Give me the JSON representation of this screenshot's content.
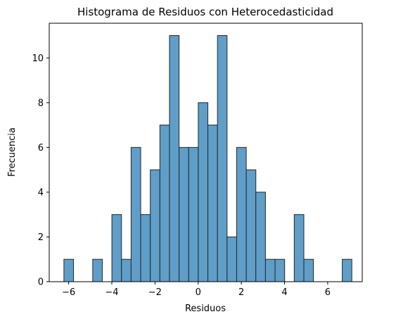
{
  "chart_data": {
    "type": "bar",
    "title": "Histograma de Residuos con Heterocedasticidad",
    "xlabel": "Residuos",
    "ylabel": "Frecuencia",
    "xlim": [
      -6.9,
      7.6
    ],
    "ylim": [
      0,
      11.55
    ],
    "xticks": [
      -6,
      -4,
      -2,
      0,
      2,
      4,
      6
    ],
    "yticks": [
      0,
      2,
      4,
      6,
      8,
      10
    ],
    "bin_start": -6.22,
    "bin_width": 0.4446,
    "counts": [
      1,
      0,
      0,
      1,
      0,
      3,
      1,
      6,
      3,
      5,
      7,
      11,
      6,
      6,
      8,
      7,
      11,
      2,
      6,
      5,
      4,
      1,
      1,
      0,
      3,
      1,
      0,
      0,
      0,
      1
    ],
    "bar_color": "#5f9ec8",
    "edge_color": "#262626",
    "grid": false
  }
}
